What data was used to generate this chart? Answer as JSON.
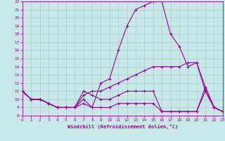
{
  "xlabel": "Windchill (Refroidissement éolien,°C)",
  "background_color": "#c8e8e8",
  "grid_color": "#aacccc",
  "line_color": "#990099",
  "xlim": [
    0,
    23
  ],
  "ylim": [
    8,
    22
  ],
  "xticks": [
    0,
    1,
    2,
    3,
    4,
    5,
    6,
    7,
    8,
    9,
    10,
    11,
    12,
    13,
    14,
    15,
    16,
    17,
    18,
    19,
    20,
    21,
    22,
    23
  ],
  "yticks": [
    8,
    9,
    10,
    11,
    12,
    13,
    14,
    15,
    16,
    17,
    18,
    19,
    20,
    21,
    22
  ],
  "line1_x": [
    0,
    1,
    2,
    3,
    4,
    5,
    6,
    7,
    8,
    9,
    10,
    11,
    12,
    13,
    14,
    15,
    16,
    17,
    18,
    19,
    20,
    21,
    22,
    23
  ],
  "line1_y": [
    11,
    10,
    10,
    9.5,
    9,
    9,
    9,
    10,
    9,
    12,
    12.5,
    16,
    19,
    21,
    21.5,
    22,
    22,
    18,
    16.5,
    14,
    14.5,
    11,
    9,
    8.5
  ],
  "line2_x": [
    0,
    1,
    2,
    3,
    4,
    5,
    6,
    7,
    8,
    9,
    10,
    11,
    12,
    13,
    14,
    15,
    16,
    17,
    18,
    19,
    20,
    21,
    22,
    23
  ],
  "line2_y": [
    11,
    10,
    10,
    9.5,
    9,
    9,
    9,
    10.5,
    11,
    11,
    11.5,
    12,
    12.5,
    13,
    13.5,
    14,
    14,
    14,
    14,
    14.5,
    14.5,
    11.5,
    9,
    8.5
  ],
  "line3_x": [
    0,
    1,
    2,
    3,
    4,
    5,
    6,
    7,
    8,
    9,
    10,
    11,
    12,
    13,
    14,
    15,
    16,
    17,
    18,
    19,
    20,
    21,
    22,
    23
  ],
  "line3_y": [
    11,
    10,
    10,
    9.5,
    9,
    9,
    9,
    11,
    10.5,
    10,
    10,
    10.5,
    11,
    11,
    11,
    11,
    8.5,
    8.5,
    8.5,
    8.5,
    8.5,
    11.5,
    9,
    8.5
  ],
  "line4_x": [
    0,
    1,
    2,
    3,
    4,
    5,
    6,
    7,
    8,
    9,
    10,
    11,
    12,
    13,
    14,
    15,
    16,
    17,
    18,
    19,
    20,
    21,
    22,
    23
  ],
  "line4_y": [
    11,
    10,
    10,
    9.5,
    9,
    9,
    9,
    9.5,
    9,
    9,
    9,
    9.5,
    9.5,
    9.5,
    9.5,
    9.5,
    8.5,
    8.5,
    8.5,
    8.5,
    8.5,
    11,
    9,
    8.5
  ]
}
